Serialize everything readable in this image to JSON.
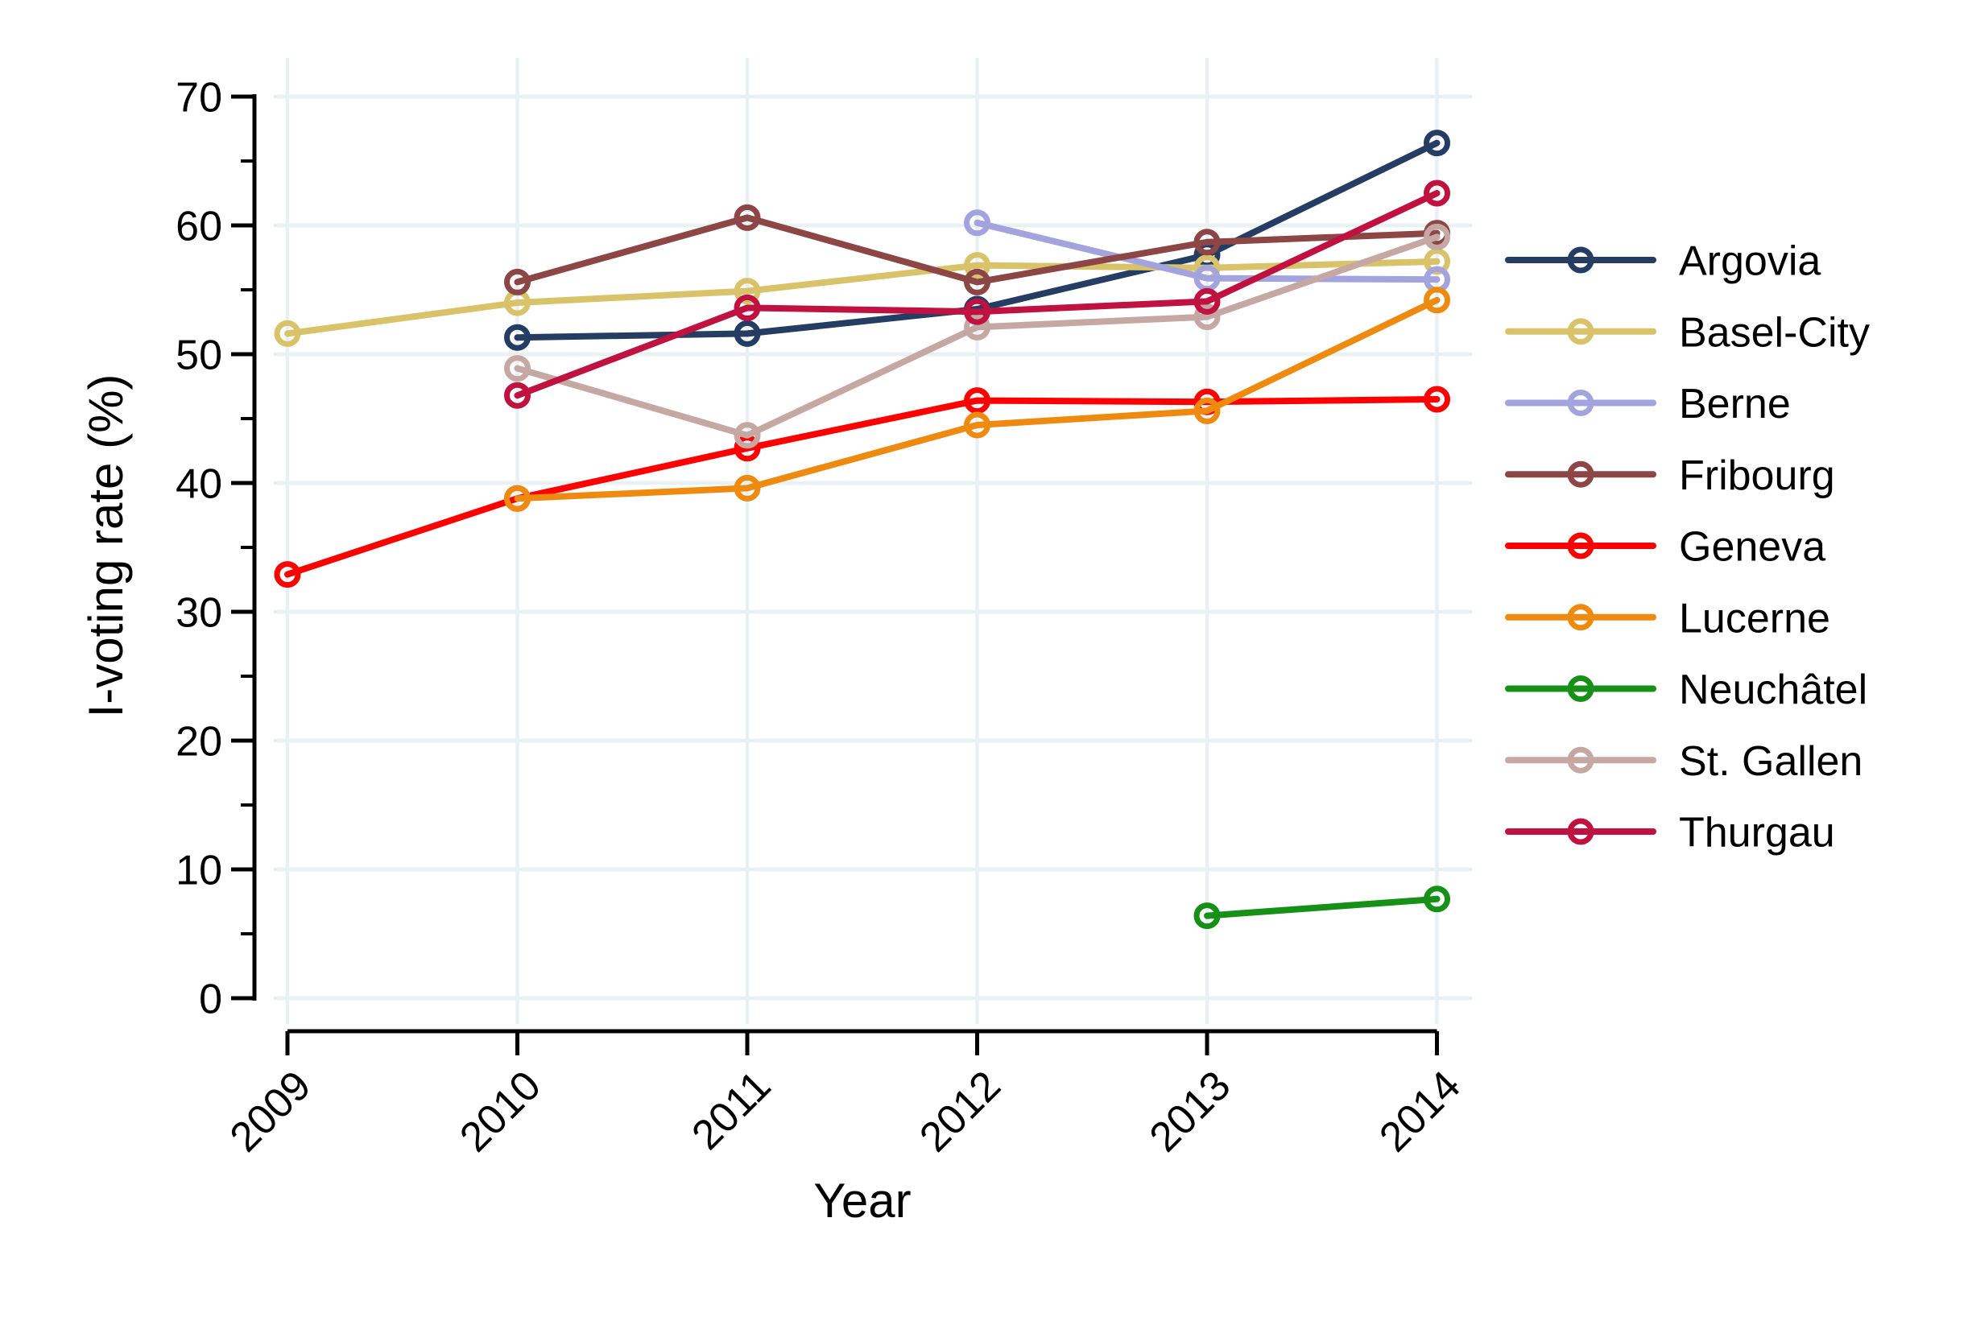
{
  "chart_data": {
    "type": "line",
    "title": "",
    "xlabel": "Year",
    "ylabel": "I-voting rate (%)",
    "x": [
      2009,
      2010,
      2011,
      2012,
      2013,
      2014
    ],
    "xtick_labels": [
      "2009",
      "2010",
      "2011",
      "2012",
      "2013",
      "2014"
    ],
    "ylim": [
      0,
      70
    ],
    "ytick_interval": 10,
    "yminor_tick_interval": 5,
    "ytick_labels": [
      "0",
      "10",
      "20",
      "30",
      "40",
      "50",
      "60",
      "70"
    ],
    "grid": true,
    "gridline_color": "#e8f0f2",
    "axis_color": "#000000",
    "legend_position": "right-outside",
    "marker": "hollow-circle",
    "series": [
      {
        "name": "Argovia",
        "color": "#253c63",
        "values": [
          null,
          51.3,
          51.6,
          53.5,
          57.7,
          66.4
        ]
      },
      {
        "name": "Basel-City",
        "color": "#d9c36a",
        "values": [
          51.6,
          54.0,
          54.9,
          56.9,
          56.7,
          57.2
        ]
      },
      {
        "name": "Berne",
        "color": "#a3a3de",
        "values": [
          null,
          null,
          null,
          60.2,
          55.9,
          55.8
        ]
      },
      {
        "name": "Fribourg",
        "color": "#8d4646",
        "values": [
          null,
          55.6,
          60.6,
          55.6,
          58.7,
          59.4
        ]
      },
      {
        "name": "Geneva",
        "color": "#fe0000",
        "values": [
          32.9,
          38.8,
          42.7,
          46.4,
          46.3,
          46.5
        ]
      },
      {
        "name": "Lucerne",
        "color": "#ef8a10",
        "values": [
          null,
          38.8,
          39.6,
          44.5,
          45.6,
          54.2
        ]
      },
      {
        "name": "Neuchâtel",
        "color": "#169016",
        "values": [
          null,
          null,
          null,
          null,
          6.4,
          7.7
        ]
      },
      {
        "name": "St. Gallen",
        "color": "#c5a8a3",
        "values": [
          null,
          48.9,
          43.7,
          52.1,
          52.9,
          59.1
        ]
      },
      {
        "name": "Thurgau",
        "color": "#c01240",
        "values": [
          null,
          46.8,
          53.6,
          53.3,
          54.1,
          62.5
        ]
      }
    ]
  }
}
